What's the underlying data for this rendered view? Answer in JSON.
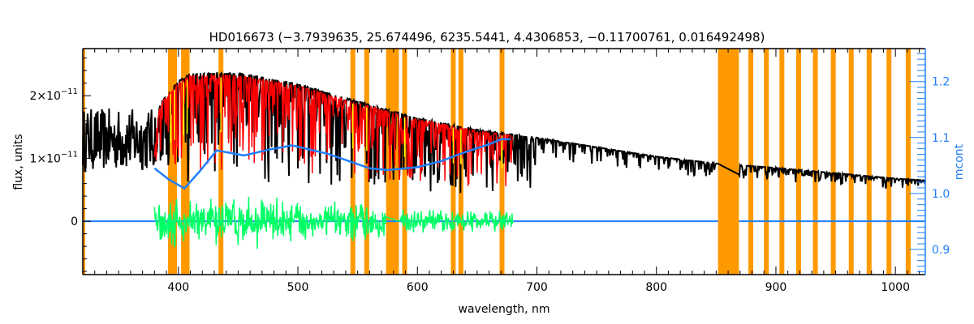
{
  "chart_data": {
    "type": "line",
    "title": "HD016673   (−3.7939635, 25.674496, 6235.5441, 4.4306853, −0.11700761, 0.016492498)",
    "xlabel": "wavelength, nm",
    "ylabel": "flux, units",
    "y2label": "mcont",
    "xlim": [
      320,
      1025
    ],
    "ylim": [
      -8.5e-12,
      2.75e-11
    ],
    "y2lim": [
      0.855,
      1.259
    ],
    "x_ticks": [
      400,
      500,
      600,
      700,
      800,
      900,
      1000
    ],
    "x_tick_labels": [
      "400",
      "500",
      "600",
      "700",
      "800",
      "900",
      "1000"
    ],
    "y_ticks": [
      0,
      1e-11,
      2e-11
    ],
    "y_tick_labels": [
      {
        "base": "0",
        "exp": ""
      },
      {
        "base": "1×10",
        "exp": "−11"
      },
      {
        "base": "2×10",
        "exp": "−11"
      }
    ],
    "y2_ticks": [
      0.9,
      1.0,
      1.1,
      1.2
    ],
    "y2_tick_labels": [
      "0.9",
      "1.0",
      "1.1",
      "1.2"
    ],
    "colors": {
      "observed": "#000000",
      "model": "#ff0000",
      "masked_model": "#ffff00",
      "residual": "#00ff66",
      "mcont": "#1f7fff",
      "mask": "#ff9900"
    },
    "observed_continuum": {
      "x": [
        320,
        380,
        385,
        400,
        410,
        450,
        500,
        550,
        600,
        650,
        700,
        800,
        850,
        900,
        1000,
        1025
      ],
      "y": [
        1.3e-11,
        1.3e-11,
        1.9e-11,
        2.23e-11,
        2.36e-11,
        2.36e-11,
        2.19e-11,
        1.91e-11,
        1.65e-11,
        1.46e-11,
        1.33e-11,
        1.03e-11,
        9.2e-12,
        8.5e-12,
        6.8e-12,
        6.5e-12
      ]
    },
    "model_range": [
      380,
      680
    ],
    "residual_range": [
      380,
      680
    ],
    "mcont": {
      "x": [
        380,
        392,
        405,
        418,
        432,
        455,
        475,
        495,
        525,
        560,
        575,
        600,
        620,
        640,
        660,
        670,
        678
      ],
      "y": [
        1.045,
        1.025,
        1.009,
        1.04,
        1.077,
        1.068,
        1.078,
        1.086,
        1.071,
        1.045,
        1.042,
        1.047,
        1.058,
        1.074,
        1.088,
        1.097,
        1.097
      ]
    },
    "mask_lines": [
      393.4,
      396.8,
      404.3,
      407.3,
      435.6,
      546,
      557.6,
      589.3,
      630,
      636.4,
      670.8,
      879,
      892,
      905,
      919,
      933,
      948,
      963,
      978,
      994.6,
      1010.7
    ],
    "mask_bands": [
      [
        573.8,
        584.5
      ],
      [
        851.5,
        869
      ]
    ]
  }
}
